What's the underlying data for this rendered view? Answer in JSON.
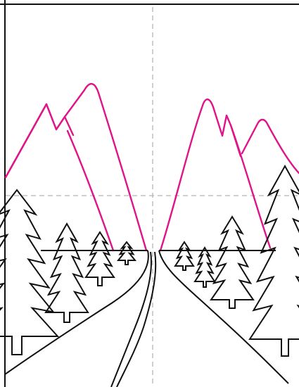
{
  "colors": {
    "line": "#111111",
    "mountain": "#e0148a",
    "guide": "#b5b5b5",
    "background": "#ffffff"
  },
  "drawing": {
    "subject": "landscape-road-with-mountains-and-pine-trees"
  }
}
